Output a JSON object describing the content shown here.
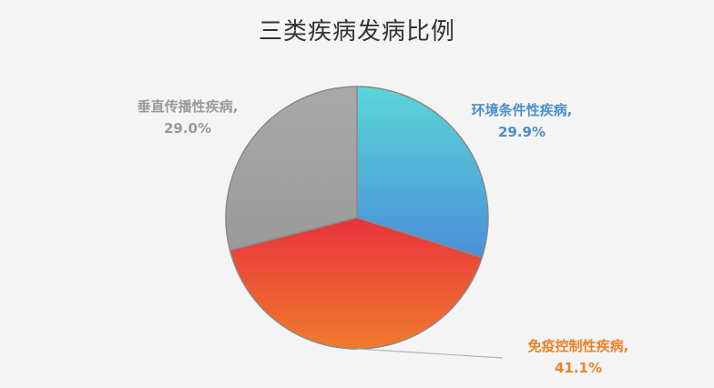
{
  "chart_data": {
    "type": "pie",
    "title": "三类疾病发病比例",
    "slices": [
      {
        "name": "环境条件性疾病",
        "value": 29.9,
        "percent_label": "29.9%",
        "color_start": "#5ad6d8",
        "color_end": "#4a8fd9",
        "label_color": "#4a8fcf"
      },
      {
        "name": "免疫控制性疾病",
        "value": 41.1,
        "percent_label": "41.1%",
        "color_start": "#e8323c",
        "color_end": "#f07a2c",
        "label_color": "#e8822a"
      },
      {
        "name": "垂直传播性疾病",
        "value": 29.0,
        "percent_label": "29.0%",
        "color_start": "#a9a9a9",
        "color_end": "#9a9a9a",
        "label_color": "#9a9a9a"
      }
    ],
    "start_angle": "12 o'clock",
    "direction": "clockwise",
    "legend": "none",
    "labels": "outside, name and percent",
    "slice_border_color": "#8a8a8a"
  }
}
